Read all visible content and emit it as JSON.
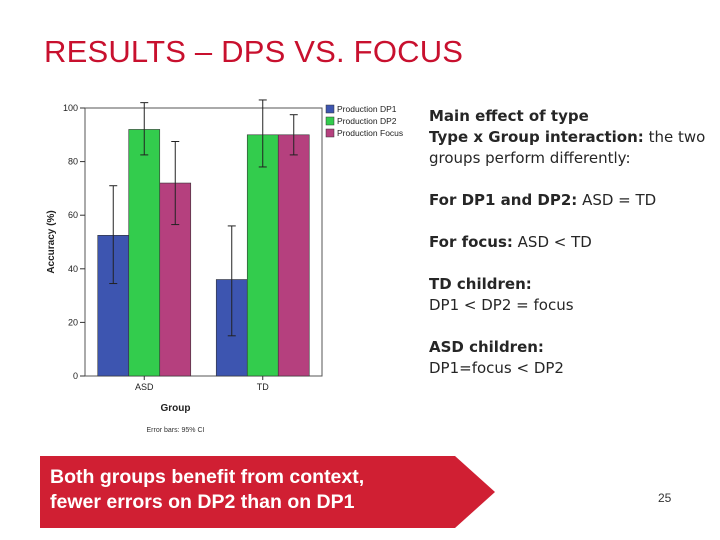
{
  "slide": {
    "title": "RESULTS – DPS VS. FOCUS",
    "page_number": "25",
    "callout": {
      "line1": "Both groups benefit from context,",
      "line2": "fewer errors on DP2 than  on DP1"
    },
    "notes": {
      "p1_bold": "Main effect of type",
      "p2_bold": "Type x Group interaction:",
      "p2_rest": " the two groups perform differently:",
      "p3_bold": "For DP1 and DP2:",
      "p3_rest": " ASD = TD",
      "p4_bold": "For focus:",
      "p4_rest": " ASD < TD",
      "p5_bold": "TD children:",
      "p5_line": " DP1 < DP2 = focus",
      "p6_bold": "ASD children:",
      "p6_line": "DP1=focus < DP2"
    }
  },
  "chart_data": {
    "type": "bar",
    "title": "",
    "xlabel": "Group",
    "ylabel": "Accuracy (%)",
    "ylim": [
      0,
      100
    ],
    "yticks": [
      0,
      20,
      40,
      60,
      80,
      100
    ],
    "categories": [
      "ASD",
      "TD"
    ],
    "series": [
      {
        "name": "Production DP1",
        "color": "#3d55b0",
        "values": [
          52.5,
          36
        ],
        "err_low": [
          34.5,
          15
        ],
        "err_high": [
          71,
          56
        ]
      },
      {
        "name": "Production DP2",
        "color": "#33cc4d",
        "values": [
          92,
          90
        ],
        "err_low": [
          82.5,
          78
        ],
        "err_high": [
          102,
          103
        ]
      },
      {
        "name": "Production Focus",
        "color": "#b5407e",
        "values": [
          72,
          90
        ],
        "err_low": [
          56.5,
          82.5
        ],
        "err_high": [
          87.5,
          97.5
        ]
      }
    ],
    "footnote": "Error bars: 95% CI",
    "legend_position": "top-right"
  }
}
